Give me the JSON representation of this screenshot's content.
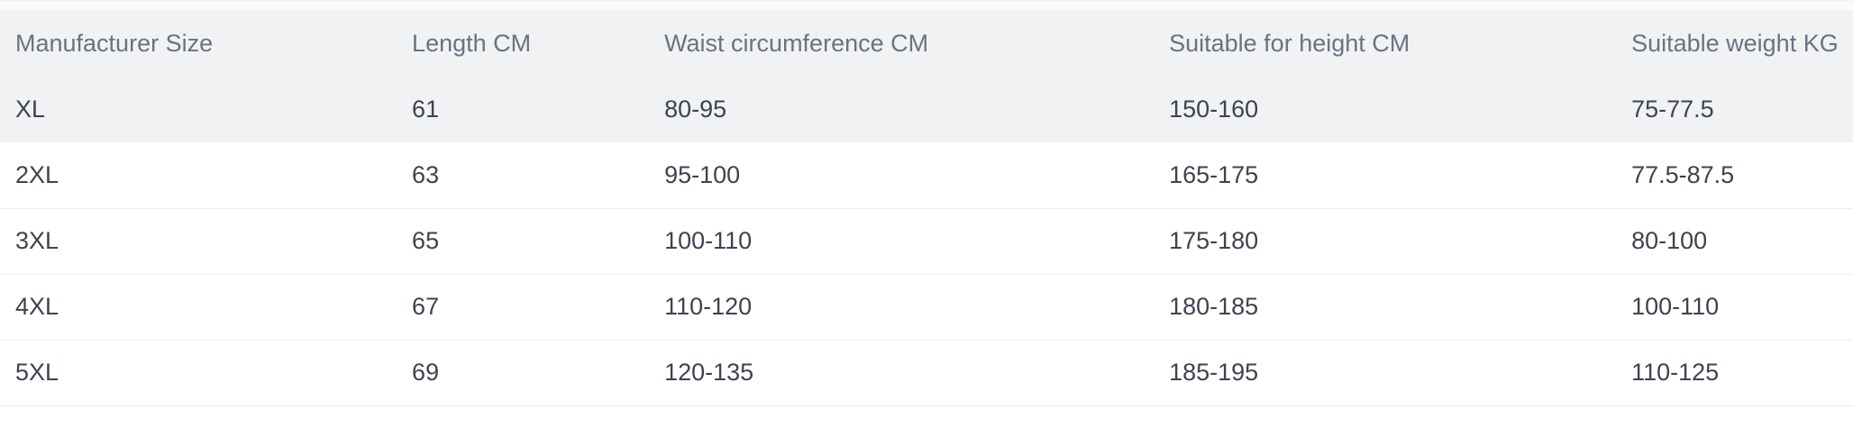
{
  "size_chart": {
    "columns": [
      "Manufacturer Size",
      "Length CM",
      "Waist circumference CM",
      "Suitable for height CM",
      "Suitable weight KG"
    ],
    "rows": [
      [
        "XL",
        "61",
        "80-95",
        "150-160",
        "75-77.5"
      ],
      [
        "2XL",
        "63",
        "95-100",
        "165-175",
        "77.5-87.5"
      ],
      [
        "3XL",
        "65",
        "100-110",
        "175-180",
        "80-100"
      ],
      [
        "4XL",
        "67",
        "110-120",
        "180-185",
        "100-110"
      ],
      [
        "5XL",
        "69",
        "120-135",
        "185-195",
        "110-125"
      ]
    ],
    "colors": {
      "header_bg": "#f1f2f4",
      "shaded_row_bg": "#f1f2f4",
      "divider": "#ececee",
      "header_text": "#6b7280",
      "cell_text": "#3d4350",
      "top_strip_bg": "#fbfbfc"
    }
  }
}
